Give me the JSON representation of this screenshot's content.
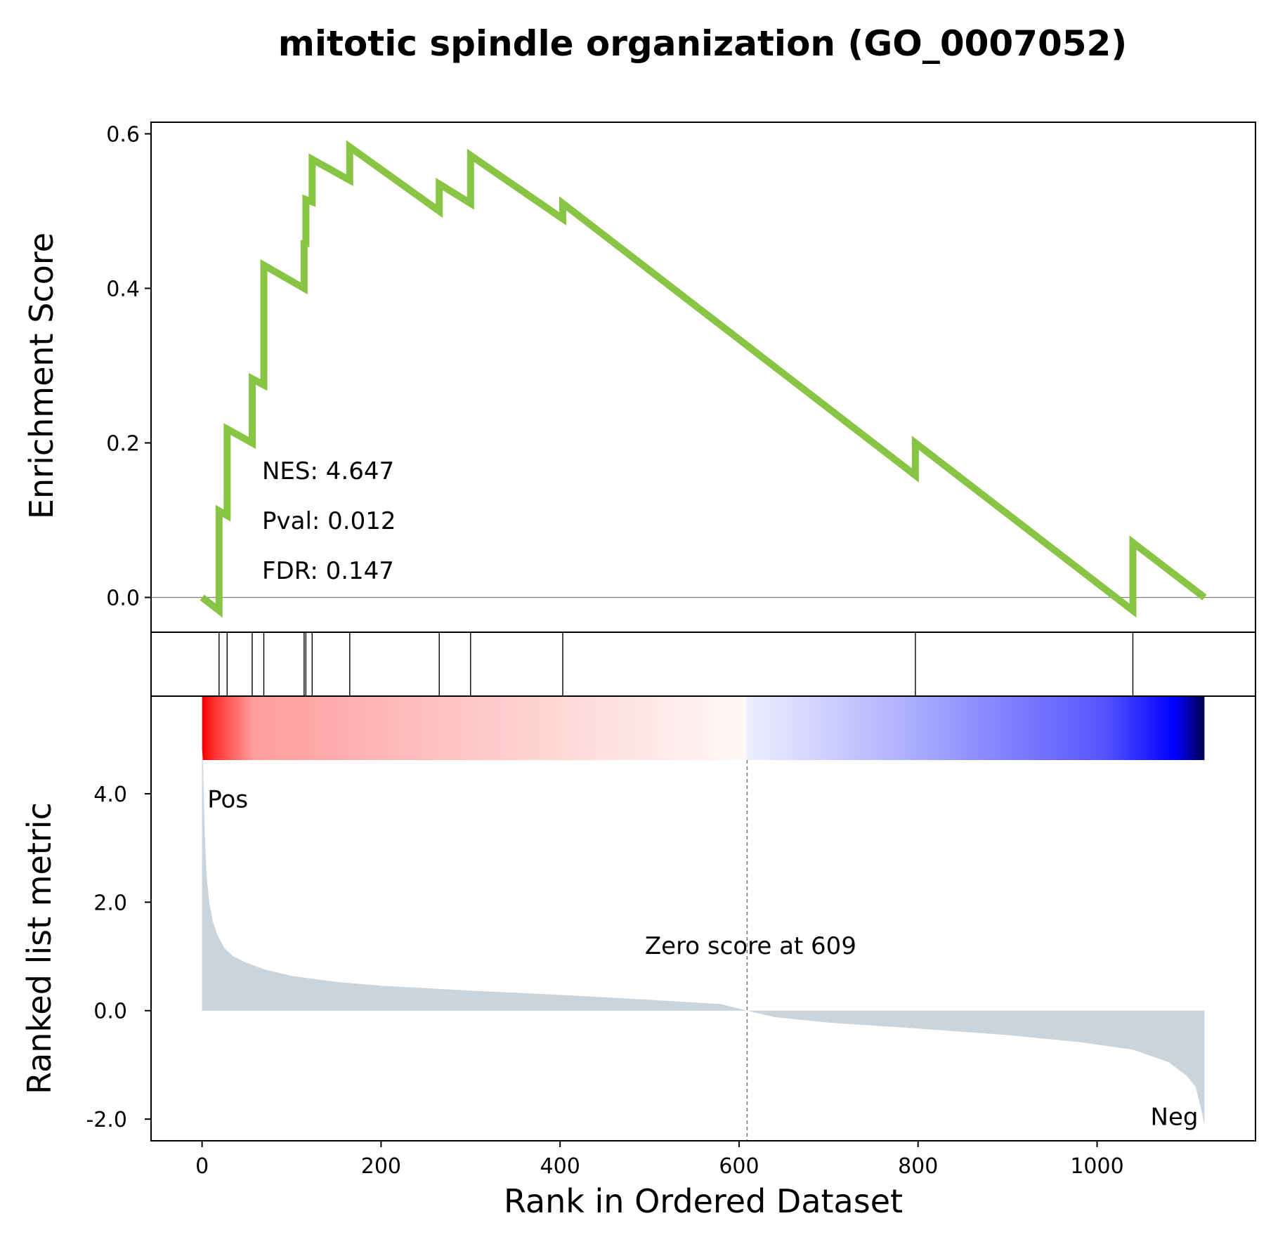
{
  "chart_data": {
    "type": "line",
    "title": "mitotic spindle organization (GO_0007052)",
    "xlabel": "Rank in Ordered Dataset",
    "xlim": [
      -57,
      1177
    ],
    "xticks": [
      0,
      200,
      400,
      600,
      800,
      1000
    ],
    "enrichment": {
      "ylabel": "Enrichment Score",
      "ylim": [
        -0.045,
        0.615
      ],
      "yticks": [
        "0.0",
        "0.2",
        "0.4",
        "0.6"
      ],
      "ytick_values": [
        0,
        0.2,
        0.4,
        0.6
      ],
      "color": "#88c544",
      "points": [
        [
          0,
          0
        ],
        [
          19,
          -0.017
        ],
        [
          19,
          0.112
        ],
        [
          28,
          0.106
        ],
        [
          28,
          0.218
        ],
        [
          56,
          0.2
        ],
        [
          56,
          0.283
        ],
        [
          69,
          0.275
        ],
        [
          69,
          0.43
        ],
        [
          114,
          0.4
        ],
        [
          114,
          0.458
        ],
        [
          116,
          0.458
        ],
        [
          116,
          0.515
        ],
        [
          123,
          0.512
        ],
        [
          123,
          0.567
        ],
        [
          165,
          0.54
        ],
        [
          165,
          0.583
        ],
        [
          265,
          0.5
        ],
        [
          265,
          0.535
        ],
        [
          300,
          0.51
        ],
        [
          300,
          0.572
        ],
        [
          403,
          0.49
        ],
        [
          403,
          0.51
        ],
        [
          797,
          0.158
        ],
        [
          797,
          0.2
        ],
        [
          1040,
          -0.017
        ],
        [
          1040,
          0.071
        ],
        [
          1120,
          0
        ]
      ],
      "stats": {
        "nes": "NES: 4.647",
        "pval": "Pval: 0.012",
        "fdr": "FDR: 0.147"
      }
    },
    "hits": [
      19,
      28,
      56,
      69,
      114,
      116,
      123,
      165,
      265,
      300,
      403,
      797,
      1040
    ],
    "ranked": {
      "ylabel": "Ranked list metric",
      "ylim": [
        -2.4,
        5.8
      ],
      "yticks": [
        "-2.0",
        "0.0",
        "2.0",
        "4.0"
      ],
      "ytick_values": [
        -2,
        0,
        2,
        4
      ],
      "fill_color": "#c9d4dc",
      "curve": [
        [
          0,
          4.85
        ],
        [
          1,
          4.6
        ],
        [
          2,
          3.9
        ],
        [
          3,
          3.3
        ],
        [
          5,
          2.5
        ],
        [
          8,
          2.0
        ],
        [
          12,
          1.65
        ],
        [
          17,
          1.4
        ],
        [
          25,
          1.15
        ],
        [
          35,
          1.0
        ],
        [
          50,
          0.88
        ],
        [
          70,
          0.76
        ],
        [
          100,
          0.64
        ],
        [
          150,
          0.53
        ],
        [
          200,
          0.46
        ],
        [
          300,
          0.37
        ],
        [
          400,
          0.29
        ],
        [
          500,
          0.2
        ],
        [
          580,
          0.12
        ],
        [
          609,
          0.0
        ],
        [
          640,
          -0.12
        ],
        [
          700,
          -0.22
        ],
        [
          800,
          -0.33
        ],
        [
          900,
          -0.45
        ],
        [
          980,
          -0.58
        ],
        [
          1040,
          -0.72
        ],
        [
          1080,
          -0.95
        ],
        [
          1100,
          -1.2
        ],
        [
          1110,
          -1.4
        ],
        [
          1116,
          -1.8
        ],
        [
          1120,
          -2.1
        ]
      ],
      "zero_rank": 609,
      "zero_label": "Zero score at 609",
      "pos_label": "Pos",
      "neg_label": "Neg",
      "pos_color": "#ff0000",
      "neg_color": "#0000ff"
    }
  }
}
